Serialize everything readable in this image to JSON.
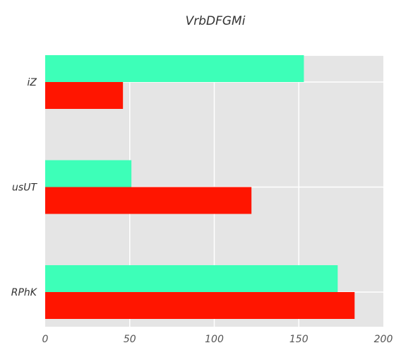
{
  "chart_data": {
    "type": "bar",
    "orientation": "horizontal",
    "title": "VrbDFGMi",
    "xlabel": "",
    "ylabel": "",
    "categories": [
      "iZ",
      "usUT",
      "RPhK"
    ],
    "xlim": [
      0,
      200
    ],
    "x_ticks": [
      "0",
      "50",
      "100",
      "150",
      "200"
    ],
    "grid": true,
    "legend": "none",
    "series": [
      {
        "values": [
          153,
          51,
          173
        ],
        "color": "#3dffb8"
      },
      {
        "values": [
          46,
          122,
          183
        ],
        "color": "#ff1500"
      }
    ],
    "plot_background": "#e5e5e5",
    "grid_color": "#ffffff"
  }
}
